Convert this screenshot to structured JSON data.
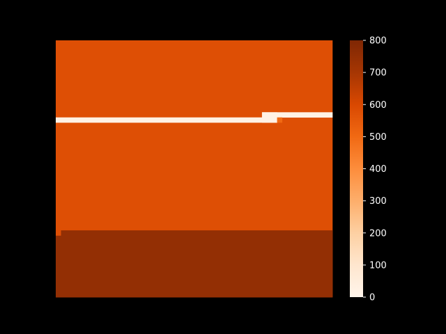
{
  "chart_data": {
    "type": "heatmap",
    "title": "",
    "xlabel": "",
    "ylabel": "",
    "axes_visible": false,
    "background": "#000000",
    "colormap": "Oranges",
    "colorbar": {
      "range": [
        0,
        800
      ],
      "ticks": [
        0,
        100,
        200,
        300,
        400,
        500,
        600,
        700,
        800
      ],
      "tick_labels": [
        "0",
        "100",
        "200",
        "300",
        "400",
        "500",
        "600",
        "700",
        "800"
      ],
      "position": "right"
    },
    "grid_size": {
      "rows": 50,
      "cols": 55
    },
    "base_value": 580,
    "regions": [
      {
        "name": "lower-band",
        "rows": [
          37,
          49
        ],
        "cols": [
          1,
          54
        ],
        "value": 750
      },
      {
        "name": "lower-band-left-edge",
        "rows": [
          38,
          49
        ],
        "cols": [
          0,
          0
        ],
        "value": 750
      },
      {
        "name": "left-edge-notch",
        "rows": [
          37,
          37
        ],
        "cols": [
          0,
          0
        ],
        "value": 580
      },
      {
        "name": "thin-stripe-left",
        "rows": [
          15,
          15
        ],
        "cols": [
          0,
          43
        ],
        "value": 20
      },
      {
        "name": "thin-stripe-right",
        "rows": [
          14,
          14
        ],
        "cols": [
          41,
          54
        ],
        "value": 20
      },
      {
        "name": "stripe-step",
        "rows": [
          14,
          15
        ],
        "cols": [
          41,
          43
        ],
        "value": 20
      },
      {
        "name": "stripe-end-spot",
        "rows": [
          15,
          15
        ],
        "cols": [
          44,
          44
        ],
        "value": 500
      }
    ]
  }
}
